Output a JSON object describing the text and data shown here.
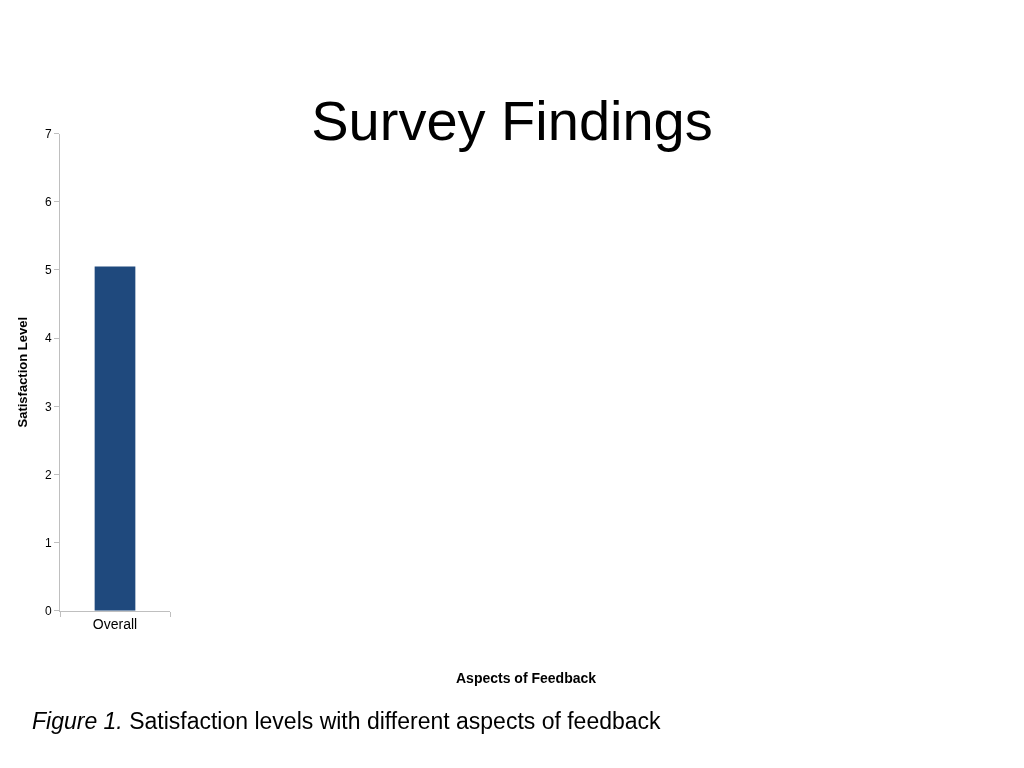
{
  "chart_data": {
    "type": "bar",
    "title": "Survey Findings",
    "ylabel": "Satisfaction Level",
    "categories": [
      "Overall"
    ],
    "values": [
      5.05
    ],
    "color": "#1f497d",
    "ylim": [
      0,
      7
    ],
    "yticks": [
      0,
      1,
      2,
      3,
      4,
      5,
      6,
      7
    ],
    "annotations": [
      "Aspects of Feedback",
      "Figure 1. Satisfaction levels with different aspects of feedback"
    ]
  }
}
